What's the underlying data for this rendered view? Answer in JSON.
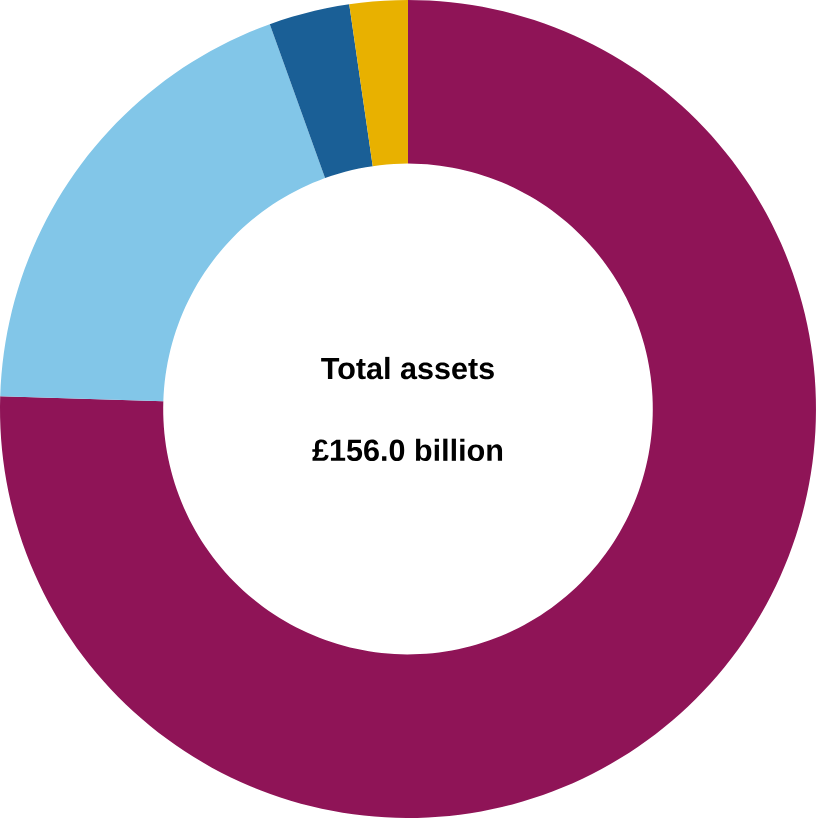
{
  "chart_data": {
    "type": "donut",
    "title": "Total assets",
    "subtitle": "£156.0 billion",
    "categories": [
      null,
      null,
      null,
      null
    ],
    "values": [
      75.5,
      19.0,
      3.2,
      2.3
    ],
    "colors": [
      "#8f1457",
      "#82c6e8",
      "#1a5f96",
      "#e8b100"
    ]
  }
}
